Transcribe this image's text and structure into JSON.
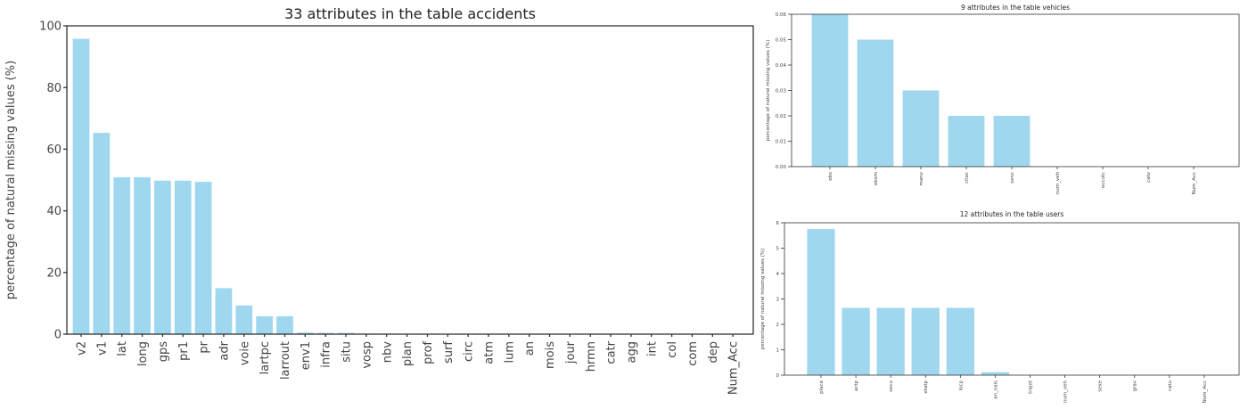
{
  "chart_data": [
    {
      "type": "bar",
      "title": "33 attributes in the table accidents",
      "ylabel": "percentage of natural missing values (%)",
      "xlabel": "",
      "ylim": [
        0,
        100
      ],
      "yticks": [
        0,
        20,
        40,
        60,
        80,
        100
      ],
      "grid": false,
      "bar_color": "#9fd7ef",
      "categories": [
        "v2",
        "v1",
        "lat",
        "long",
        "gps",
        "pr1",
        "pr",
        "adr",
        "voie",
        "lartpc",
        "larrout",
        "env1",
        "infra",
        "situ",
        "vosp",
        "nbv",
        "plan",
        "prof",
        "surf",
        "circ",
        "atm",
        "lum",
        "an",
        "mois",
        "jour",
        "hrmn",
        "catr",
        "agg",
        "int",
        "col",
        "com",
        "dep",
        "Num_Acc"
      ],
      "values": [
        95.8,
        65.3,
        50.9,
        50.9,
        49.8,
        49.8,
        49.4,
        14.9,
        9.3,
        5.8,
        5.8,
        0.5,
        0.4,
        0.4,
        0.2,
        0.2,
        0.1,
        0.1,
        0.1,
        0.1,
        0.05,
        0.05,
        0.05,
        0,
        0,
        0,
        0,
        0,
        0,
        0,
        0,
        0,
        0
      ]
    },
    {
      "type": "bar",
      "title": "9 attributes in the table vehicles",
      "ylabel": "percentage of natural missing values (%)",
      "xlabel": "",
      "ylim": [
        0,
        0.06
      ],
      "yticks": [
        "0.00",
        "0.01",
        "0.02",
        "0.03",
        "0.04",
        "0.05",
        "0.06"
      ],
      "grid": false,
      "bar_color": "#9fd7ef",
      "categories": [
        "obs",
        "obsm",
        "manv",
        "choc",
        "senc",
        "num_veh",
        "occutc",
        "catv",
        "Num_Acc"
      ],
      "values": [
        0.06,
        0.05,
        0.03,
        0.02,
        0.02,
        0,
        0,
        0,
        0
      ]
    },
    {
      "type": "bar",
      "title": "12 attributes in the table users",
      "ylabel": "percentage of natural missing values (%)",
      "xlabel": "",
      "ylim": [
        0,
        6
      ],
      "yticks": [
        0,
        1,
        2,
        3,
        4,
        5,
        6
      ],
      "grid": false,
      "bar_color": "#9fd7ef",
      "categories": [
        "place",
        "actp",
        "secu",
        "etatp",
        "locp",
        "an_nais",
        "trajet",
        "num_veh",
        "sexe",
        "grav",
        "catu",
        "Num_Acc"
      ],
      "values": [
        5.75,
        2.65,
        2.65,
        2.65,
        2.65,
        0.12,
        0,
        0,
        0,
        0,
        0,
        0
      ]
    }
  ]
}
